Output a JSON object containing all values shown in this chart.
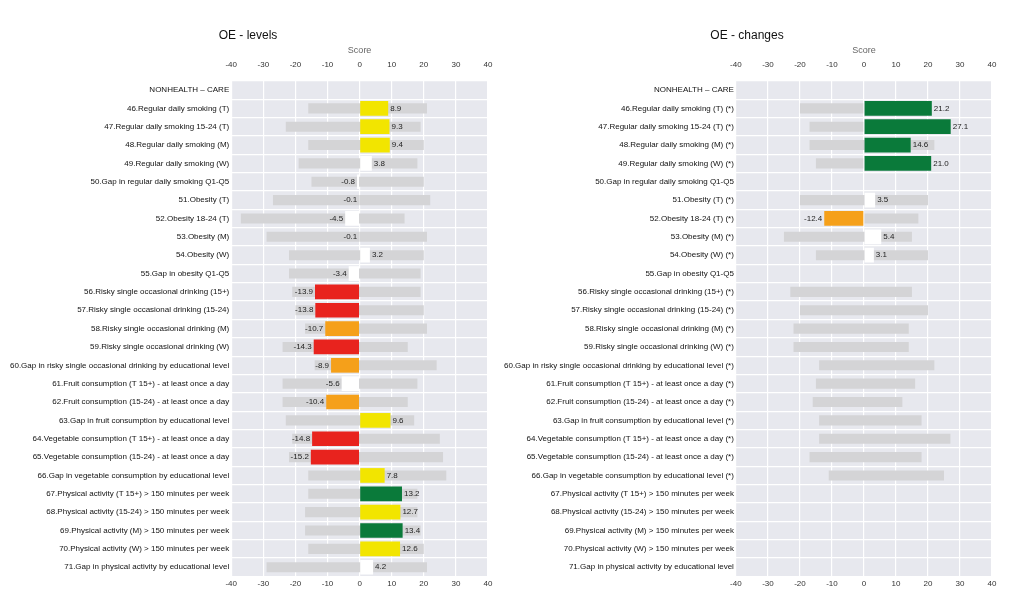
{
  "chart_data": [
    {
      "type": "bar",
      "orientation": "horizontal",
      "title": "OE - levels",
      "x2label": "Score",
      "xlim": [
        -40,
        40
      ],
      "xticks": [
        -40,
        -30,
        -20,
        -10,
        0,
        10,
        20,
        30,
        40
      ],
      "x2lim": [
        -40,
        40
      ],
      "x2ticks": [
        -40,
        -30,
        -20,
        -10,
        0,
        10,
        20,
        30,
        40
      ],
      "grid": true,
      "legend": false,
      "categories": [
        "NONHEALTH – CARE",
        "46.Regular daily smoking (T)",
        "47.Regular daily smoking 15-24 (T)",
        "48.Regular daily smoking (M)",
        "49.Regular daily smoking (W)",
        "50.Gap in regular daily smoking Q1-Q5",
        "51.Obesity (T)",
        "52.Obesity 18-24 (T)",
        "53.Obesity (M)",
        "54.Obesity (W)",
        "55.Gap in obesity Q1-Q5",
        "56.Risky single occasional drinking (15+)",
        "57.Risky single occasional drinking (15-24)",
        "58.Risky single occasional drinking (M)",
        "59.Risky single occasional drinking (W)",
        "60.Gap in risky single occasional drinking by educational level",
        "61.Fruit consumption (T 15+) - at least once a day",
        "62.Fruit consumption (15-24) - at least once a day",
        "63.Gap in fruit consumption by educational level",
        "64.Vegetable consumption (T 15+) - at least once a day",
        "65.Vegetable consumption (15-24) - at least once a day",
        "66.Gap in vegetable consumption by educational level",
        "67.Physical activity (T 15+) > 150 minutes per week",
        "68.Physical activity (15-24) > 150 minutes per week",
        "69.Physical activity (M) > 150 minutes per week",
        "70.Physical activity (W) > 150 minutes per week",
        "71.Gap in physical activity by educational level"
      ],
      "series": [
        {
          "color": "#d4d4d6",
          "base": [
            null,
            -16,
            -23,
            -16,
            -19,
            -15,
            -27,
            -37,
            -29,
            -22,
            -22,
            -21,
            -20,
            -17,
            -24,
            -14,
            -24,
            -24,
            -23,
            -21,
            -22,
            -16,
            -16,
            -17,
            -17,
            -16,
            -29
          ],
          "values": [
            null,
            37,
            42,
            36,
            37,
            35,
            49,
            51,
            50,
            42,
            41,
            40,
            40,
            38,
            39,
            38,
            42,
            39,
            40,
            46,
            48,
            43,
            34,
            35,
            36,
            36,
            50
          ]
        },
        {
          "colors": [
            null,
            "#f2e500",
            "#f2e500",
            "#f2e500",
            "#ffffff",
            "#ffffff",
            "#ffffff",
            "#ffffff",
            "#ffffff",
            "#ffffff",
            "#ffffff",
            "#e8231e",
            "#e8231e",
            "#f5a01a",
            "#e8231e",
            "#f5a01a",
            "#ffffff",
            "#f5a01a",
            "#f2e500",
            "#e8231e",
            "#e8231e",
            "#f2e500",
            "#0a7a3a",
            "#f2e500",
            "#0a7a3a",
            "#f2e500",
            "#ffffff"
          ],
          "values": [
            null,
            8.9,
            9.3,
            9.4,
            3.8,
            -0.8,
            -0.1,
            -4.5,
            -0.1,
            3.2,
            -3.4,
            -13.9,
            -13.8,
            -10.7,
            -14.3,
            -8.9,
            -5.6,
            -10.4,
            9.6,
            -14.8,
            -15.2,
            7.8,
            13.2,
            12.7,
            13.4,
            12.6,
            4.2
          ],
          "value_labels": [
            null,
            "8.9",
            "9.3",
            "9.4",
            "3.8",
            "-0.8",
            "-0.1",
            "-4.5",
            "-0.1",
            "3.2",
            "-3.4",
            "-13.9",
            "-13.8",
            "-10.7",
            "-14.3",
            "-8.9",
            "-5.6",
            "-10.4",
            "9.6",
            "-14.8",
            "-15.2",
            "7.8",
            "13.2",
            "12.7",
            "13.4",
            "12.6",
            "4.2"
          ]
        }
      ]
    },
    {
      "type": "bar",
      "orientation": "horizontal",
      "title": "OE - changes",
      "x2label": "Score",
      "xlim": [
        -40,
        40
      ],
      "xticks": [
        -40,
        -30,
        -20,
        -10,
        0,
        10,
        20,
        30,
        40
      ],
      "x2lim": [
        -40,
        40
      ],
      "x2ticks": [
        -40,
        -30,
        -20,
        -10,
        0,
        10,
        20,
        30,
        40
      ],
      "grid": true,
      "legend": false,
      "categories": [
        "NONHEALTH – CARE",
        "46.Regular daily smoking (T) (*)",
        "47.Regular daily smoking 15-24 (T) (*)",
        "48.Regular daily smoking (M) (*)",
        "49.Regular daily smoking (W) (*)",
        "50.Gap in regular daily smoking Q1-Q5",
        "51.Obesity (T) (*)",
        "52.Obesity 18-24 (T) (*)",
        "53.Obesity (M) (*)",
        "54.Obesity (W) (*)",
        "55.Gap in obesity Q1-Q5",
        "56.Risky single occasional drinking (15+) (*)",
        "57.Risky single occasional drinking (15-24) (*)",
        "58.Risky single occasional drinking (M) (*)",
        "59.Risky single occasional drinking (W) (*)",
        "60.Gap in risky single occasional drinking by educational level (*)",
        "61.Fruit consumption (T 15+) - at least once a day (*)",
        "62.Fruit consumption (15-24) - at least once a day (*)",
        "63.Gap in fruit consumption by educational level (*)",
        "64.Vegetable consumption (T 15+) - at least once a day (*)",
        "65.Vegetable consumption (15-24) - at least once a day (*)",
        "66.Gap in vegetable consumption by educational level (*)",
        "67.Physical activity (T 15+) > 150 minutes per week",
        "68.Physical activity (15-24) > 150 minutes per week",
        "69.Physical activity (M) > 150 minutes per week",
        "70.Physical activity (W) > 150 minutes per week",
        "71.Gap in physical activity by educational level"
      ],
      "series": [
        {
          "color": "#d4d4d6",
          "base": [
            null,
            -20,
            -17,
            -17,
            -15,
            null,
            -20,
            0,
            -25,
            -15,
            null,
            -23,
            -20,
            -22,
            -22,
            -14,
            -15,
            -16,
            -14,
            -14,
            -17,
            -11,
            null,
            null,
            null,
            null,
            null
          ],
          "values": [
            null,
            20,
            17,
            39,
            15,
            null,
            40,
            17,
            40,
            35,
            null,
            38,
            40,
            36,
            36,
            36,
            31,
            28,
            32,
            41,
            35,
            36,
            null,
            null,
            null,
            null,
            null
          ]
        },
        {
          "colors": [
            null,
            "#0a7a3a",
            "#0a7a3a",
            "#0a7a3a",
            "#0a7a3a",
            null,
            "#ffffff",
            "#f5a01a",
            "#ffffff",
            "#ffffff",
            null,
            null,
            null,
            null,
            null,
            null,
            null,
            null,
            null,
            null,
            null,
            null,
            null,
            null,
            null,
            null,
            null
          ],
          "values": [
            null,
            21.2,
            27.1,
            14.6,
            21.0,
            null,
            3.5,
            -12.4,
            5.4,
            3.1,
            null,
            null,
            null,
            null,
            null,
            null,
            null,
            null,
            null,
            null,
            null,
            null,
            null,
            null,
            null,
            null,
            null
          ],
          "value_labels": [
            null,
            "21.2",
            "27.1",
            "14.6",
            "21.0",
            null,
            "3.5",
            "-12.4",
            "5.4",
            "3.1",
            null,
            null,
            null,
            null,
            null,
            null,
            null,
            null,
            null,
            null,
            null,
            null,
            null,
            null,
            null,
            null,
            null
          ]
        }
      ]
    }
  ]
}
